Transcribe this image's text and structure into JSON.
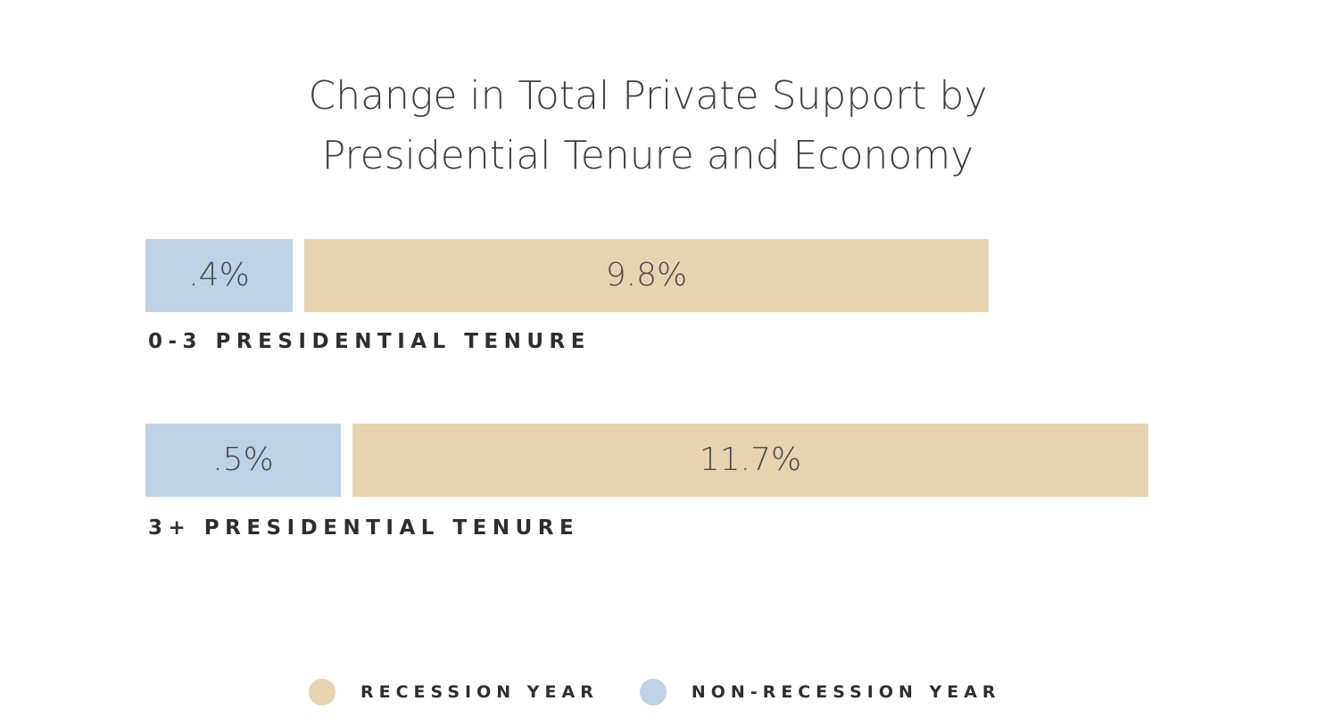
{
  "chart_data": {
    "type": "bar",
    "orientation": "horizontal-stacked",
    "title": [
      "Change in Total Private Support by",
      "Presidential Tenure and Economy"
    ],
    "categories": [
      "0-3 PRESIDENTIAL TENURE",
      "3+ PRESIDENTIAL TENURE"
    ],
    "series": [
      {
        "name": "NON-RECESSION YEAR",
        "color": "#bdd2e6",
        "values": [
          0.4,
          0.5
        ],
        "labels": [
          ".4%",
          ".5%"
        ]
      },
      {
        "name": "RECESSION YEAR",
        "color": "#e8d3b1",
        "values": [
          9.8,
          11.7
        ],
        "labels": [
          "9.8%",
          "11.7%"
        ]
      }
    ],
    "legend": [
      {
        "label": "RECESSION YEAR",
        "color": "#e8d3b1"
      },
      {
        "label": "NON-RECESSION YEAR",
        "color": "#bdd2e6"
      }
    ],
    "legend_position": "bottom",
    "xlabel": "",
    "ylabel": "",
    "grid": false
  }
}
